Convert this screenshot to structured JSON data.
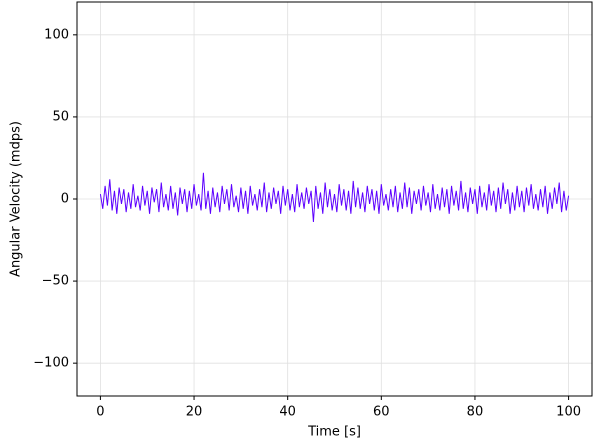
{
  "chart_data": {
    "type": "line",
    "x_label": "Time [s]",
    "y_label": "Angular Velocity (mdps)",
    "x": [
      0,
      0.5,
      1,
      1.5,
      2,
      2.5,
      3,
      3.5,
      4,
      4.5,
      5,
      5.5,
      6,
      6.5,
      7,
      7.5,
      8,
      8.5,
      9,
      9.5,
      10,
      10.5,
      11,
      11.5,
      12,
      12.5,
      13,
      13.5,
      14,
      14.5,
      15,
      15.5,
      16,
      16.5,
      17,
      17.5,
      18,
      18.5,
      19,
      19.5,
      20,
      20.5,
      21,
      21.5,
      22,
      22.5,
      23,
      23.5,
      24,
      24.5,
      25,
      25.5,
      26,
      26.5,
      27,
      27.5,
      28,
      28.5,
      29,
      29.5,
      30,
      30.5,
      31,
      31.5,
      32,
      32.5,
      33,
      33.5,
      34,
      34.5,
      35,
      35.5,
      36,
      36.5,
      37,
      37.5,
      38,
      38.5,
      39,
      39.5,
      40,
      40.5,
      41,
      41.5,
      42,
      42.5,
      43,
      43.5,
      44,
      44.5,
      45,
      45.5,
      46,
      46.5,
      47,
      47.5,
      48,
      48.5,
      49,
      49.5,
      50,
      50.5,
      51,
      51.5,
      52,
      52.5,
      53,
      53.5,
      54,
      54.5,
      55,
      55.5,
      56,
      56.5,
      57,
      57.5,
      58,
      58.5,
      59,
      59.5,
      60,
      60.5,
      61,
      61.5,
      62,
      62.5,
      63,
      63.5,
      64,
      64.5,
      65,
      65.5,
      66,
      66.5,
      67,
      67.5,
      68,
      68.5,
      69,
      69.5,
      70,
      70.5,
      71,
      71.5,
      72,
      72.5,
      73,
      73.5,
      74,
      74.5,
      75,
      75.5,
      76,
      76.5,
      77,
      77.5,
      78,
      78.5,
      79,
      79.5,
      80,
      80.5,
      81,
      81.5,
      82,
      82.5,
      83,
      83.5,
      84,
      84.5,
      85,
      85.5,
      86,
      86.5,
      87,
      87.5,
      88,
      88.5,
      89,
      89.5,
      90,
      90.5,
      91,
      91.5,
      92,
      92.5,
      93,
      93.5,
      94,
      94.5,
      95,
      95.5,
      96,
      96.5,
      97,
      97.5,
      98,
      98.5,
      99,
      99.5,
      100
    ],
    "series": [
      {
        "color": "#5c00ff",
        "values": [
          3,
          -6,
          8,
          -4,
          12,
          -7,
          5,
          -9,
          7,
          -3,
          6,
          -8,
          4,
          -6,
          9,
          -5,
          2,
          -7,
          8,
          -4,
          5,
          -9,
          7,
          -2,
          6,
          -8,
          10,
          -5,
          3,
          -7,
          8,
          -6,
          4,
          -10,
          7,
          -3,
          6,
          -8,
          5,
          -6,
          9,
          -4,
          3,
          -7,
          16,
          -6,
          5,
          -9,
          7,
          -5,
          4,
          -8,
          8,
          -3,
          6,
          -7,
          9,
          -5,
          2,
          -8,
          7,
          -6,
          5,
          -9,
          8,
          -4,
          3,
          -7,
          6,
          -5,
          10,
          -8,
          4,
          -6,
          7,
          -3,
          5,
          -9,
          8,
          -4,
          6,
          -7,
          3,
          -8,
          9,
          -5,
          4,
          -6,
          7,
          -3,
          5,
          -14,
          8,
          -6,
          4,
          -9,
          10,
          -5,
          6,
          -7,
          3,
          -8,
          9,
          -4,
          6,
          -7,
          5,
          -9,
          11,
          -5,
          7,
          -6,
          4,
          -8,
          8,
          -3,
          6,
          -7,
          5,
          -9,
          9,
          -4,
          3,
          -7,
          6,
          -5,
          8,
          -8,
          4,
          -6,
          10,
          -5,
          7,
          -9,
          5,
          -3,
          6,
          -7,
          8,
          -4,
          4,
          -8,
          9,
          -6,
          3,
          -7,
          7,
          -5,
          6,
          -9,
          8,
          -4,
          5,
          -7,
          11,
          -6,
          4,
          -8,
          7,
          -3,
          6,
          -9,
          8,
          -5,
          4,
          -7,
          9,
          -4,
          5,
          -8,
          7,
          -6,
          10,
          -3,
          6,
          -9,
          4,
          -7,
          8,
          -5,
          5,
          -8,
          7,
          -4,
          9,
          -6,
          3,
          -7,
          6,
          -5,
          8,
          -9,
          4,
          -6,
          7,
          -3,
          10,
          -8,
          5,
          -7,
          2
        ]
      }
    ],
    "xlim": [
      -5,
      105
    ],
    "xticks": [
      0,
      20,
      40,
      60,
      80,
      100
    ],
    "ylim": [
      -120,
      120
    ],
    "yticks": [
      {
        "value": -100,
        "label": "−100"
      },
      {
        "value": -50,
        "label": "−50"
      },
      0,
      50,
      100
    ],
    "grid": true
  }
}
